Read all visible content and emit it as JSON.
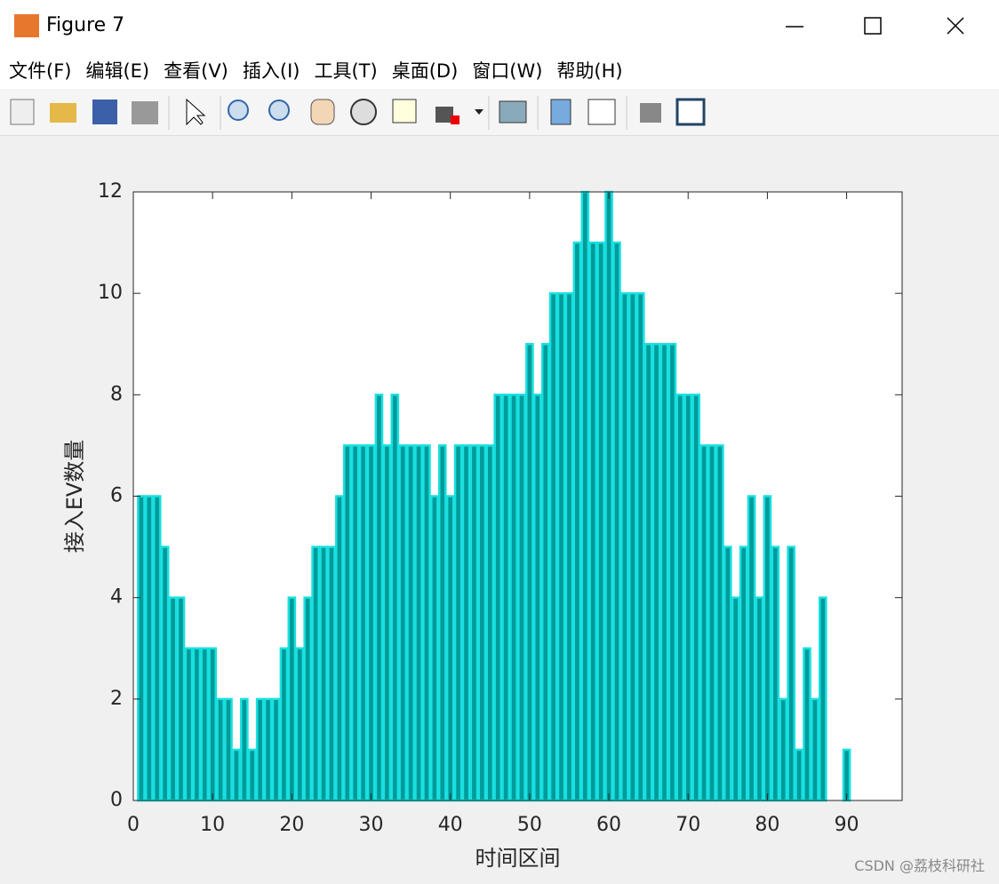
{
  "window": {
    "title": "Figure 7",
    "menu": [
      "文件(F)",
      "编辑(E)",
      "查看(V)",
      "插入(I)",
      "工具(T)",
      "桌面(D)",
      "窗口(W)",
      "帮助(H)"
    ],
    "watermark": "CSDN @荔枝科研社"
  },
  "chart_data": {
    "type": "bar",
    "xlabel": "时间区间",
    "ylabel": "接入EV数量",
    "x": [
      1,
      2,
      3,
      4,
      5,
      6,
      7,
      8,
      9,
      10,
      11,
      12,
      13,
      14,
      15,
      16,
      17,
      18,
      19,
      20,
      21,
      22,
      23,
      24,
      25,
      26,
      27,
      28,
      29,
      30,
      31,
      32,
      33,
      34,
      35,
      36,
      37,
      38,
      39,
      40,
      41,
      42,
      43,
      44,
      45,
      46,
      47,
      48,
      49,
      50,
      51,
      52,
      53,
      54,
      55,
      56,
      57,
      58,
      59,
      60,
      61,
      62,
      63,
      64,
      65,
      66,
      67,
      68,
      69,
      70,
      71,
      72,
      73,
      74,
      75,
      76,
      77,
      78,
      79,
      80,
      81,
      82,
      83,
      84,
      85,
      86,
      87,
      88,
      89,
      90,
      91,
      92,
      93,
      94,
      95,
      96
    ],
    "values": [
      6,
      6,
      6,
      5,
      4,
      4,
      3,
      3,
      3,
      3,
      2,
      2,
      1,
      2,
      1,
      2,
      2,
      2,
      3,
      4,
      3,
      4,
      5,
      5,
      5,
      6,
      7,
      7,
      7,
      7,
      8,
      7,
      8,
      7,
      7,
      7,
      7,
      6,
      7,
      6,
      7,
      7,
      7,
      7,
      7,
      8,
      8,
      8,
      8,
      9,
      8,
      9,
      10,
      10,
      10,
      11,
      12,
      11,
      11,
      12,
      11,
      10,
      10,
      10,
      9,
      9,
      9,
      9,
      8,
      8,
      8,
      7,
      7,
      7,
      5,
      4,
      5,
      6,
      4,
      6,
      5,
      2,
      5,
      1,
      3,
      2,
      4,
      0,
      0,
      1,
      0,
      0,
      0,
      0,
      0,
      0
    ],
    "color": "#009a9a",
    "edge_color": "#19e0e0",
    "xlim": [
      0,
      97
    ],
    "xticks": [
      0,
      10,
      20,
      30,
      40,
      50,
      60,
      70,
      80,
      90
    ],
    "ylim": [
      0,
      12
    ],
    "yticks": [
      0,
      2,
      4,
      6,
      8,
      10,
      12
    ]
  }
}
